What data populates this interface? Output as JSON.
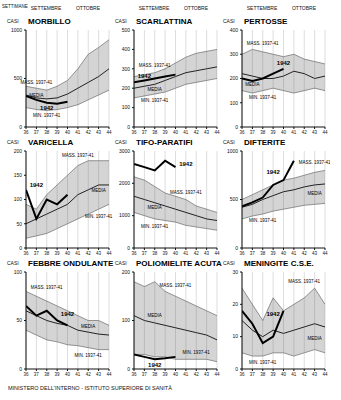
{
  "header": {
    "x_label": "SETTIMANE",
    "months": [
      "SETTEMBRE",
      "OTTOBRE"
    ]
  },
  "footer": "MINISTERO DELL'INTERNO - ISTITUTO SUPERIORE DI SANITÀ",
  "chart_data": [
    {
      "type": "line",
      "title": "MORBILLO",
      "y_label": "CASI",
      "grid": true,
      "x": [
        36,
        37,
        38,
        39,
        40,
        41,
        42,
        43,
        44
      ],
      "xlim": [
        36,
        44
      ],
      "xticks": [
        36,
        37,
        38,
        39,
        40,
        41,
        42,
        43,
        44
      ],
      "ylim": [
        0,
        1000
      ],
      "yticks": [
        0,
        500,
        1000
      ],
      "series": [
        {
          "name": "MASS. 1937-41",
          "type": "area",
          "color": "#555555",
          "line_style": "solid",
          "values": [
            420,
            400,
            380,
            420,
            480,
            600,
            750,
            820,
            900
          ],
          "label": {
            "x": 37,
            "y": 460
          }
        },
        {
          "name": "MIN. 1937-41",
          "type": "area",
          "color": "#555555",
          "line_style": "solid",
          "values": [
            200,
            180,
            170,
            180,
            200,
            230,
            280,
            330,
            380
          ],
          "label": {
            "x": 38,
            "y": 120
          }
        },
        {
          "name": "MEDIA",
          "type": "line",
          "color": "#222222",
          "line_style": "solid",
          "values": [
            330,
            300,
            290,
            300,
            340,
            400,
            460,
            520,
            600
          ],
          "label": {
            "x": 37,
            "y": 330
          }
        },
        {
          "name": "1942",
          "type": "line",
          "color": "#000000",
          "line_style": "bold",
          "values": [
            320,
            280,
            250,
            240,
            260,
            null,
            null,
            null,
            null
          ],
          "label": {
            "x": 38,
            "y": 195
          }
        }
      ]
    },
    {
      "type": "line",
      "title": "SCARLATTINA",
      "y_label": "CASI",
      "grid": true,
      "x": [
        36,
        37,
        38,
        39,
        40,
        41,
        42,
        43,
        44
      ],
      "xlim": [
        36,
        44
      ],
      "xticks": [
        36,
        37,
        38,
        39,
        40,
        41,
        42,
        43,
        44
      ],
      "ylim": [
        0,
        500
      ],
      "yticks": [
        0,
        100,
        200,
        300,
        400,
        500
      ],
      "series": [
        {
          "name": "MASS. 1937-41",
          "type": "area",
          "color": "#555555",
          "line_style": "solid",
          "values": [
            260,
            270,
            280,
            300,
            330,
            360,
            380,
            390,
            400
          ],
          "label": {
            "x": 38,
            "y": 315
          }
        },
        {
          "name": "MIN. 1937-41",
          "type": "area",
          "color": "#555555",
          "line_style": "solid",
          "values": [
            150,
            160,
            170,
            180,
            200,
            220,
            230,
            240,
            250
          ],
          "label": {
            "x": 38,
            "y": 135
          }
        },
        {
          "name": "MEDIA",
          "type": "line",
          "color": "#222222",
          "line_style": "solid",
          "values": [
            200,
            210,
            220,
            240,
            260,
            280,
            290,
            300,
            310
          ],
          "label": {
            "x": 38,
            "y": 195
          }
        },
        {
          "name": "1942",
          "type": "line",
          "color": "#000000",
          "line_style": "bold",
          "values": [
            230,
            240,
            250,
            260,
            270,
            null,
            null,
            null,
            null
          ],
          "label": {
            "x": 37,
            "y": 265
          }
        }
      ]
    },
    {
      "type": "line",
      "title": "PERTOSSE",
      "y_label": "CASI",
      "grid": true,
      "x": [
        36,
        37,
        38,
        39,
        40,
        41,
        42,
        43,
        44
      ],
      "xlim": [
        36,
        44
      ],
      "xticks": [
        36,
        37,
        38,
        39,
        40,
        41,
        42,
        43,
        44
      ],
      "ylim": [
        0,
        400
      ],
      "yticks": [
        0,
        100,
        200,
        300,
        400
      ],
      "series": [
        {
          "name": "MASS. 1937-41",
          "type": "area",
          "color": "#555555",
          "line_style": "solid",
          "values": [
            300,
            320,
            310,
            300,
            290,
            300,
            280,
            270,
            260
          ],
          "label": {
            "x": 38,
            "y": 345
          }
        },
        {
          "name": "MIN. 1937-41",
          "type": "area",
          "color": "#555555",
          "line_style": "solid",
          "values": [
            150,
            140,
            150,
            160,
            150,
            140,
            150,
            160,
            150
          ],
          "label": {
            "x": 38,
            "y": 120
          }
        },
        {
          "name": "MEDIA",
          "type": "line",
          "color": "#222222",
          "line_style": "solid",
          "values": [
            220,
            210,
            200,
            200,
            210,
            230,
            220,
            200,
            210
          ],
          "label": {
            "x": 37,
            "y": 175
          }
        },
        {
          "name": "1942",
          "type": "line",
          "color": "#000000",
          "line_style": "bold",
          "values": [
            200,
            190,
            200,
            220,
            240,
            null,
            null,
            null,
            null
          ],
          "label": {
            "x": 40,
            "y": 265
          }
        }
      ]
    },
    {
      "type": "line",
      "title": "VARICELLA",
      "y_label": "CASI",
      "grid": true,
      "x": [
        36,
        37,
        38,
        39,
        40,
        41,
        42,
        43,
        44
      ],
      "xlim": [
        36,
        44
      ],
      "xticks": [
        36,
        37,
        38,
        39,
        40,
        41,
        42,
        43,
        44
      ],
      "ylim": [
        0,
        200
      ],
      "yticks": [
        0,
        50,
        100,
        150,
        200
      ],
      "series": [
        {
          "name": "MASS. 1937-41",
          "type": "area",
          "color": "#555555",
          "line_style": "solid",
          "values": [
            90,
            80,
            110,
            130,
            150,
            170,
            180,
            180,
            180
          ],
          "label": {
            "x": 41,
            "y": 190
          }
        },
        {
          "name": "MIN. 1937-41",
          "type": "area",
          "color": "#555555",
          "line_style": "solid",
          "values": [
            20,
            25,
            30,
            40,
            50,
            60,
            70,
            80,
            90
          ],
          "label": {
            "x": 43,
            "y": 65
          }
        },
        {
          "name": "MEDIA",
          "type": "line",
          "color": "#222222",
          "line_style": "solid",
          "values": [
            50,
            60,
            70,
            80,
            90,
            110,
            120,
            130,
            130
          ],
          "label": {
            "x": 43,
            "y": 118
          }
        },
        {
          "name": "1942",
          "type": "line",
          "color": "#000000",
          "line_style": "bold",
          "values": [
            120,
            60,
            100,
            90,
            110,
            null,
            null,
            null,
            null
          ],
          "label": {
            "x": 37,
            "y": 130
          }
        }
      ]
    },
    {
      "type": "line",
      "title": "TIFO-PARATIFI",
      "y_label": "CASI",
      "grid": true,
      "x": [
        36,
        37,
        38,
        39,
        40,
        41,
        42,
        43,
        44
      ],
      "xlim": [
        36,
        44
      ],
      "xticks": [
        36,
        37,
        38,
        39,
        40,
        41,
        42,
        43,
        44
      ],
      "ylim": [
        0,
        3000
      ],
      "yticks": [
        0,
        1000,
        2000,
        3000
      ],
      "series": [
        {
          "name": "MASS. 1937-41",
          "type": "area",
          "color": "#555555",
          "line_style": "solid",
          "values": [
            2200,
            2100,
            1900,
            1700,
            1600,
            1500,
            1300,
            1200,
            1100
          ],
          "label": {
            "x": 41,
            "y": 1720
          }
        },
        {
          "name": "MIN. 1937-41",
          "type": "area",
          "color": "#555555",
          "line_style": "solid",
          "values": [
            1100,
            1000,
            900,
            850,
            800,
            700,
            650,
            600,
            550
          ],
          "label": {
            "x": 38,
            "y": 680
          }
        },
        {
          "name": "MEDIA",
          "type": "line",
          "color": "#222222",
          "line_style": "solid",
          "values": [
            1600,
            1500,
            1400,
            1300,
            1200,
            1100,
            1000,
            900,
            850
          ],
          "label": {
            "x": 38,
            "y": 1250
          }
        },
        {
          "name": "1942",
          "type": "line",
          "color": "#000000",
          "line_style": "bold",
          "values": [
            2600,
            2500,
            2400,
            2700,
            2500,
            null,
            null,
            null,
            null
          ],
          "label": {
            "x": 41,
            "y": 2600
          }
        }
      ]
    },
    {
      "type": "line",
      "title": "DIFTERITE",
      "y_label": "CASI",
      "grid": true,
      "x": [
        36,
        37,
        38,
        39,
        40,
        41,
        42,
        43,
        44
      ],
      "xlim": [
        36,
        44
      ],
      "xticks": [
        36,
        37,
        38,
        39,
        40,
        41,
        42,
        43,
        44
      ],
      "ylim": [
        0,
        1000
      ],
      "yticks": [
        0,
        500,
        1000
      ],
      "series": [
        {
          "name": "MASS. 1937-41",
          "type": "area",
          "color": "#555555",
          "line_style": "solid",
          "values": [
            500,
            550,
            600,
            650,
            700,
            720,
            750,
            780,
            800
          ],
          "label": {
            "x": 43,
            "y": 880
          }
        },
        {
          "name": "MIN. 1937-41",
          "type": "area",
          "color": "#555555",
          "line_style": "solid",
          "values": [
            300,
            330,
            350,
            380,
            400,
            420,
            440,
            450,
            460
          ],
          "label": {
            "x": 38,
            "y": 280
          }
        },
        {
          "name": "MEDIA",
          "type": "line",
          "color": "#222222",
          "line_style": "solid",
          "values": [
            420,
            450,
            500,
            540,
            580,
            600,
            630,
            650,
            660
          ],
          "label": {
            "x": 43,
            "y": 560
          }
        },
        {
          "name": "1942",
          "type": "line",
          "color": "#000000",
          "line_style": "bold",
          "values": [
            430,
            470,
            520,
            650,
            700,
            900,
            null,
            null,
            null
          ],
          "label": {
            "x": 39,
            "y": 790
          }
        }
      ]
    },
    {
      "type": "line",
      "title": "FEBBRE ONDULANTE",
      "y_label": "CASI",
      "grid": true,
      "x": [
        36,
        37,
        38,
        39,
        40,
        41,
        42,
        43,
        44
      ],
      "xlim": [
        36,
        44
      ],
      "xticks": [
        36,
        37,
        38,
        39,
        40,
        41,
        42,
        43,
        44
      ],
      "ylim": [
        0,
        100
      ],
      "yticks": [
        0,
        50,
        100
      ],
      "series": [
        {
          "name": "MASS. 1937-41",
          "type": "area",
          "color": "#555555",
          "line_style": "solid",
          "values": [
            80,
            75,
            70,
            65,
            60,
            55,
            50,
            50,
            45
          ],
          "label": {
            "x": 38,
            "y": 84
          }
        },
        {
          "name": "MIN. 1937-41",
          "type": "area",
          "color": "#555555",
          "line_style": "solid",
          "values": [
            40,
            35,
            30,
            28,
            25,
            24,
            22,
            20,
            20
          ],
          "label": {
            "x": 42,
            "y": 14
          }
        },
        {
          "name": "MEDIA",
          "type": "line",
          "color": "#222222",
          "line_style": "solid",
          "values": [
            60,
            55,
            50,
            47,
            45,
            40,
            38,
            36,
            35
          ],
          "label": {
            "x": 42,
            "y": 44
          }
        },
        {
          "name": "1942",
          "type": "line",
          "color": "#000000",
          "line_style": "bold",
          "values": [
            65,
            55,
            60,
            50,
            45,
            null,
            null,
            null,
            null
          ],
          "label": {
            "x": 40,
            "y": 57
          }
        }
      ]
    },
    {
      "type": "line",
      "title": "POLIOMIELITE ACUTA",
      "y_label": "CASI",
      "grid": true,
      "x": [
        36,
        37,
        38,
        39,
        40,
        41,
        42,
        43,
        44
      ],
      "xlim": [
        36,
        44
      ],
      "xticks": [
        36,
        37,
        38,
        39,
        40,
        41,
        42,
        43,
        44
      ],
      "ylim": [
        0,
        200
      ],
      "yticks": [
        0,
        100,
        200
      ],
      "series": [
        {
          "name": "MASS. 1937-41",
          "type": "area",
          "color": "#555555",
          "line_style": "solid",
          "values": [
            180,
            170,
            180,
            160,
            150,
            140,
            130,
            120,
            110
          ],
          "label": {
            "x": 40,
            "y": 172
          }
        },
        {
          "name": "MIN. 1937-41",
          "type": "area",
          "color": "#555555",
          "line_style": "solid",
          "values": [
            30,
            30,
            25,
            25,
            20,
            20,
            20,
            20,
            15
          ],
          "label": {
            "x": 42,
            "y": 35
          }
        },
        {
          "name": "MEDIA",
          "type": "line",
          "color": "#222222",
          "line_style": "solid",
          "values": [
            110,
            100,
            95,
            90,
            85,
            80,
            75,
            70,
            60
          ],
          "label": {
            "x": 38,
            "y": 110
          }
        },
        {
          "name": "1942",
          "type": "line",
          "color": "#000000",
          "line_style": "bold",
          "values": [
            30,
            25,
            20,
            22,
            25,
            null,
            null,
            null,
            null
          ],
          "label": {
            "x": 38,
            "y": 8
          }
        }
      ]
    },
    {
      "type": "line",
      "title": "MENINGITE C.S.E.",
      "y_label": "CASI",
      "grid": true,
      "x": [
        36,
        37,
        38,
        39,
        40,
        41,
        42,
        43,
        44
      ],
      "xlim": [
        36,
        44
      ],
      "xticks": [
        36,
        37,
        38,
        39,
        40,
        41,
        42,
        43,
        44
      ],
      "ylim": [
        0,
        30
      ],
      "yticks": [
        0,
        10,
        20,
        30
      ],
      "series": [
        {
          "name": "MASS. 1937-41",
          "type": "area",
          "color": "#555555",
          "line_style": "solid",
          "values": [
            25,
            20,
            15,
            22,
            18,
            20,
            22,
            25,
            20
          ],
          "label": {
            "x": 42,
            "y": 27
          }
        },
        {
          "name": "MIN. 1937-41",
          "type": "area",
          "color": "#555555",
          "line_style": "solid",
          "values": [
            5,
            4,
            4,
            5,
            5,
            4,
            5,
            6,
            5
          ],
          "label": {
            "x": 38,
            "y": 2
          }
        },
        {
          "name": "MEDIA",
          "type": "line",
          "color": "#222222",
          "line_style": "solid",
          "values": [
            15,
            12,
            10,
            12,
            11,
            12,
            13,
            14,
            13
          ],
          "label": {
            "x": 43,
            "y": 9.5
          }
        },
        {
          "name": "1942",
          "type": "line",
          "color": "#000000",
          "line_style": "bold",
          "values": [
            18,
            14,
            8,
            10,
            18,
            null,
            null,
            null,
            null
          ],
          "label": {
            "x": 39,
            "y": 17
          }
        }
      ]
    }
  ]
}
